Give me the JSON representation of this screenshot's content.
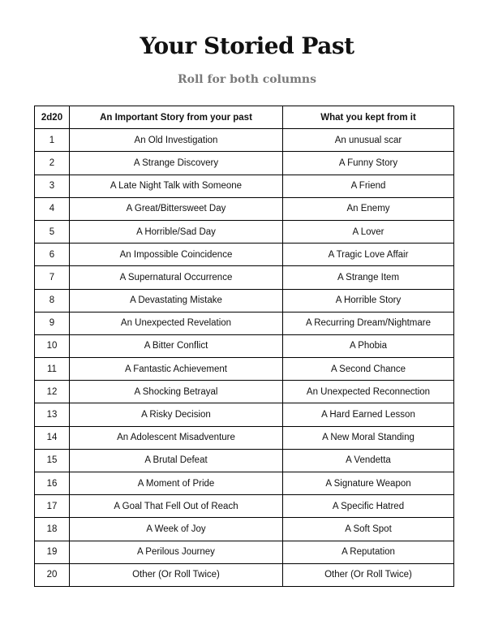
{
  "title": "Your Storied Past",
  "subtitle": "Roll for both columns",
  "table": {
    "headers": [
      "2d20",
      "An Important Story from your past",
      "What you kept from it"
    ],
    "rows": [
      [
        "1",
        "An Old Investigation",
        "An unusual scar"
      ],
      [
        "2",
        "A Strange Discovery",
        "A Funny Story"
      ],
      [
        "3",
        "A Late Night Talk with Someone",
        "A Friend"
      ],
      [
        "4",
        "A Great/Bittersweet Day",
        "An Enemy"
      ],
      [
        "5",
        "A Horrible/Sad Day",
        "A Lover"
      ],
      [
        "6",
        "An Impossible Coincidence",
        "A Tragic Love Affair"
      ],
      [
        "7",
        "A Supernatural Occurrence",
        "A Strange Item"
      ],
      [
        "8",
        "A Devastating Mistake",
        "A Horrible Story"
      ],
      [
        "9",
        "An Unexpected Revelation",
        "A Recurring Dream/Nightmare"
      ],
      [
        "10",
        "A Bitter Conflict",
        "A Phobia"
      ],
      [
        "11",
        "A Fantastic Achievement",
        "A Second Chance"
      ],
      [
        "12",
        "A Shocking Betrayal",
        "An Unexpected Reconnection"
      ],
      [
        "13",
        "A Risky Decision",
        "A Hard Earned Lesson"
      ],
      [
        "14",
        "An Adolescent Misadventure",
        "A New Moral Standing"
      ],
      [
        "15",
        "A Brutal Defeat",
        "A Vendetta"
      ],
      [
        "16",
        "A Moment of Pride",
        "A Signature Weapon"
      ],
      [
        "17",
        "A Goal That Fell Out of Reach",
        "A Specific Hatred"
      ],
      [
        "18",
        "A Week of Joy",
        "A Soft Spot"
      ],
      [
        "19",
        "A Perilous Journey",
        "A Reputation"
      ],
      [
        "20",
        "Other (Or Roll Twice)",
        "Other (Or Roll Twice)"
      ]
    ]
  }
}
